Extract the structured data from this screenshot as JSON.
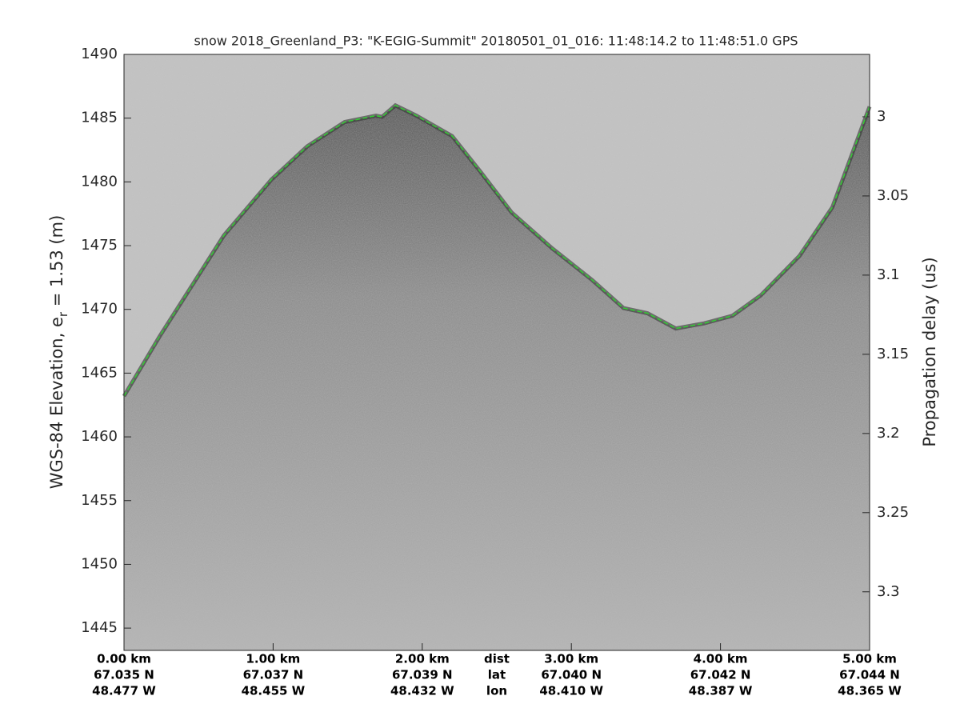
{
  "chart_data": {
    "type": "line",
    "title": "snow 2018_Greenland_P3: \"K-EGIG-Summit\"  20180501_01_016: 11:48:14.2 to 11:48:51.0 GPS",
    "ylabel_parts": [
      "WGS-84 Elevation, e",
      "r",
      " = 1.53 (m)"
    ],
    "y2label": "Propagation delay (us)",
    "x": [
      0,
      0.24,
      0.67,
      0.99,
      1.23,
      1.48,
      1.69,
      1.73,
      1.82,
      1.96,
      2.2,
      2.39,
      2.6,
      2.87,
      3.14,
      3.35,
      3.51,
      3.7,
      3.89,
      4.08,
      4.27,
      4.53,
      4.75,
      5.0
    ],
    "values": [
      1463.2,
      1467.9,
      1475.8,
      1480.2,
      1482.8,
      1484.7,
      1485.2,
      1485.1,
      1486.0,
      1485.2,
      1483.6,
      1480.8,
      1477.6,
      1474.8,
      1472.3,
      1470.1,
      1469.7,
      1468.5,
      1468.9,
      1469.5,
      1471.1,
      1474.2,
      1478.0,
      1485.9
    ],
    "color": "#33cc33",
    "xlim": [
      0,
      5.0
    ],
    "xticks": [
      {
        "value": 0,
        "label": "0.00 km"
      },
      {
        "value": 1,
        "label": "1.00 km"
      },
      {
        "value": 2,
        "label": "2.00 km"
      },
      {
        "value": 3,
        "label": "3.00 km"
      },
      {
        "value": 4,
        "label": "4.00 km"
      },
      {
        "value": 5,
        "label": "5.00 km"
      }
    ],
    "xtick_lat": [
      "67.035 N",
      "67.037 N",
      "67.039 N",
      "67.040 N",
      "67.042 N",
      "67.044 N"
    ],
    "xtick_lon": [
      "48.477 W",
      "48.455 W",
      "48.432 W",
      "48.410 W",
      "48.387 W",
      "48.365 W"
    ],
    "row_labels": [
      "dist",
      "lat",
      "lon"
    ],
    "ylim": [
      1443.25,
      1490
    ],
    "yticks": [
      1445,
      1450,
      1455,
      1460,
      1465,
      1470,
      1475,
      1480,
      1485,
      1490
    ],
    "y2lim": [
      3.337,
      2.9606
    ],
    "y2ticks": [
      3,
      3.05,
      3.1,
      3.15,
      3.2,
      3.25,
      3.3
    ],
    "grid": false
  }
}
